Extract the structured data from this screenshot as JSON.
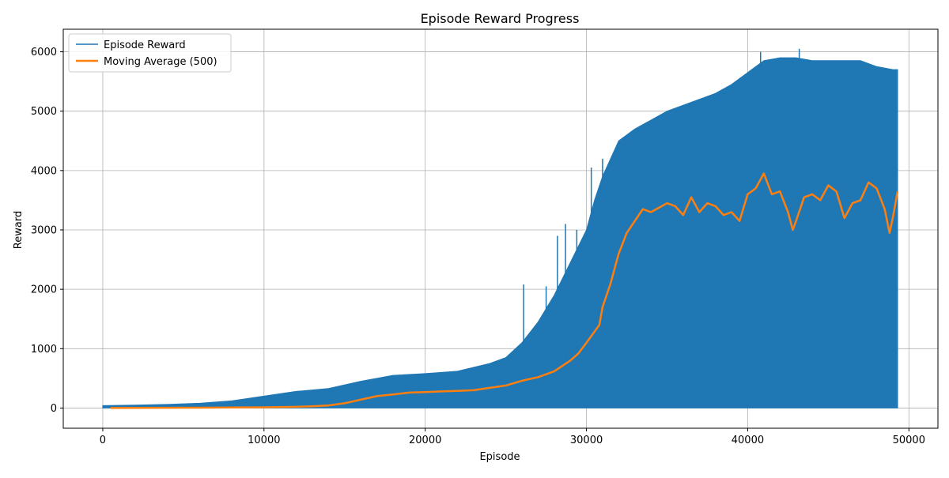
{
  "chart_data": {
    "type": "line",
    "title": "Episode Reward Progress",
    "xlabel": "Episode",
    "ylabel": "Reward",
    "xlim": [
      -2450,
      51800
    ],
    "ylim": [
      -340,
      6380
    ],
    "grid": true,
    "legend_position": "top-left",
    "x_ticks": [
      0,
      10000,
      20000,
      30000,
      40000,
      50000
    ],
    "x_tick_labels": [
      "0",
      "10000",
      "20000",
      "30000",
      "40000",
      "50000"
    ],
    "y_ticks": [
      0,
      1000,
      2000,
      3000,
      4000,
      5000,
      6000
    ],
    "y_tick_labels": [
      "0",
      "1000",
      "2000",
      "3000",
      "4000",
      "5000",
      "6000"
    ],
    "series": [
      {
        "name": "Episode Reward",
        "color": "#1f77b4",
        "style": "band",
        "x": [
          0,
          2000,
          4000,
          6000,
          8000,
          10000,
          12000,
          14000,
          16000,
          18000,
          20000,
          22000,
          24000,
          25000,
          26000,
          27000,
          28000,
          29000,
          30000,
          30500,
          31000,
          32000,
          33000,
          34000,
          35000,
          36000,
          37000,
          38000,
          39000,
          40000,
          41000,
          42000,
          43000,
          44000,
          45000,
          46000,
          47000,
          48000,
          49000,
          49300
        ],
        "upper": [
          40,
          50,
          60,
          80,
          120,
          200,
          280,
          330,
          450,
          550,
          580,
          620,
          750,
          850,
          1100,
          1450,
          1900,
          2450,
          3000,
          3500,
          3900,
          4500,
          4700,
          4850,
          5000,
          5100,
          5200,
          5300,
          5450,
          5650,
          5850,
          5900,
          5900,
          5850,
          5850,
          5850,
          5850,
          5750,
          5700,
          5700
        ],
        "lower": [
          0,
          0,
          0,
          0,
          0,
          0,
          0,
          0,
          0,
          0,
          0,
          0,
          0,
          0,
          0,
          0,
          0,
          0,
          0,
          0,
          0,
          0,
          0,
          0,
          0,
          0,
          0,
          0,
          0,
          0,
          0,
          0,
          0,
          0,
          0,
          0,
          0,
          0,
          0,
          0
        ],
        "spikes": [
          {
            "x": 26100,
            "y": 2080
          },
          {
            "x": 27500,
            "y": 2050
          },
          {
            "x": 28200,
            "y": 2900
          },
          {
            "x": 28700,
            "y": 3100
          },
          {
            "x": 29400,
            "y": 3000
          },
          {
            "x": 30300,
            "y": 4050
          },
          {
            "x": 31000,
            "y": 4200
          },
          {
            "x": 40800,
            "y": 6000
          },
          {
            "x": 43200,
            "y": 6050
          }
        ]
      },
      {
        "name": "Moving Average (500)",
        "color": "#ff7f0e",
        "style": "line",
        "x": [
          500,
          2000,
          4000,
          6000,
          8000,
          10000,
          12000,
          13000,
          14000,
          15000,
          16000,
          17000,
          18000,
          19000,
          20000,
          21000,
          22000,
          23000,
          24000,
          25000,
          26000,
          27000,
          28000,
          29000,
          29500,
          30000,
          30800,
          31000,
          31500,
          32000,
          32500,
          33000,
          33500,
          34000,
          35000,
          35500,
          36000,
          36500,
          37000,
          37500,
          38000,
          38500,
          39000,
          39500,
          40000,
          40500,
          41000,
          41500,
          42000,
          42500,
          42800,
          43000,
          43500,
          44000,
          44500,
          45000,
          45500,
          46000,
          46500,
          47000,
          47500,
          48000,
          48500,
          48800,
          49000,
          49300
        ],
        "y": [
          0,
          2,
          4,
          6,
          8,
          12,
          20,
          30,
          45,
          80,
          140,
          200,
          230,
          260,
          270,
          280,
          290,
          300,
          340,
          380,
          460,
          520,
          620,
          800,
          920,
          1100,
          1400,
          1700,
          2100,
          2600,
          2950,
          3150,
          3350,
          3300,
          3450,
          3400,
          3250,
          3550,
          3300,
          3450,
          3400,
          3250,
          3300,
          3150,
          3600,
          3700,
          3950,
          3600,
          3650,
          3300,
          3000,
          3150,
          3550,
          3600,
          3500,
          3750,
          3650,
          3200,
          3450,
          3500,
          3800,
          3700,
          3350,
          2950,
          3200,
          3650
        ]
      }
    ]
  }
}
